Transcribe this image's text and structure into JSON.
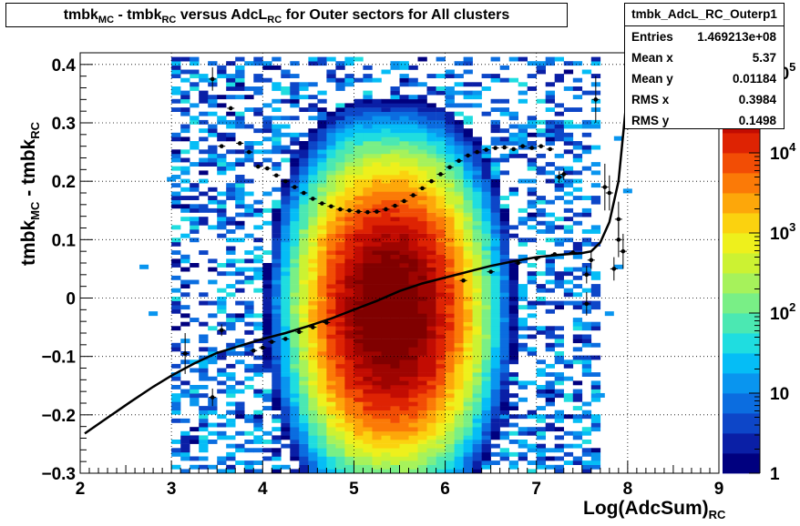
{
  "chart_data": {
    "type": "heatmap",
    "title_parts": [
      "tmbk",
      "MC",
      " - tmbk",
      "RC",
      " versus AdcL",
      "RC",
      " for Outer sectors for All clusters"
    ],
    "xlabel_main": "Log(AdcSum)",
    "xlabel_sub": "RC",
    "ylabel_parts": [
      "tmbk",
      "MC",
      " - tmbk",
      "RC"
    ],
    "xlim": [
      2,
      9
    ],
    "ylim": [
      -0.3,
      0.42
    ],
    "x_ticks": [
      "2",
      "3",
      "4",
      "5",
      "6",
      "7",
      "8",
      "9"
    ],
    "y_ticks": [
      "−0.3",
      "−0.2",
      "−0.1",
      "0",
      "0.1",
      "0.2",
      "0.3",
      "0.4"
    ],
    "y_tick_values": [
      -0.3,
      -0.2,
      -0.1,
      0,
      0.1,
      0.2,
      0.3,
      0.4
    ],
    "grid": true,
    "color_scale": {
      "type": "log",
      "range": [
        1,
        100000
      ],
      "tick_labels": [
        {
          "base": "1",
          "exp": ""
        },
        {
          "base": "10",
          "exp": ""
        },
        {
          "base": "10",
          "exp": "2"
        },
        {
          "base": "10",
          "exp": "3"
        },
        {
          "base": "10",
          "exp": "4"
        },
        {
          "base": "10",
          "exp": "5"
        }
      ],
      "palette": [
        "#00007f",
        "#0a1fa6",
        "#0d46c8",
        "#0b6de0",
        "#0995ef",
        "#05bdf6",
        "#1fdde0",
        "#4be8b2",
        "#79ef86",
        "#a6f25b",
        "#ccf232",
        "#eef01c",
        "#fbd20f",
        "#fda70a",
        "#fb7a07",
        "#f24d05",
        "#de2303",
        "#c20c02",
        "#9e0401",
        "#800000"
      ]
    },
    "stats": {
      "name": "tmbk_AdcL_RC_Outerp1",
      "rows": [
        {
          "label": "Entries",
          "value": "1.469213e+08"
        },
        {
          "label": "Mean x",
          "value": "5.37"
        },
        {
          "label": "Mean y",
          "value": "0.01184"
        },
        {
          "label": "RMS x",
          "value": "0.3984"
        },
        {
          "label": "RMS y",
          "value": "0.1498"
        }
      ]
    },
    "profile_points": [
      {
        "x": 3.15,
        "y": -0.095,
        "ey": 0.035
      },
      {
        "x": 3.45,
        "y": 0.375,
        "ey": 0.02
      },
      {
        "x": 3.45,
        "y": -0.17,
        "ey": 0.015
      },
      {
        "x": 3.55,
        "y": 0.26
      },
      {
        "x": 3.55,
        "y": -0.055,
        "ey": 0.01
      },
      {
        "x": 3.65,
        "y": 0.325
      },
      {
        "x": 3.75,
        "y": 0.265
      },
      {
        "x": 3.85,
        "y": 0.25
      },
      {
        "x": 3.95,
        "y": 0.225
      },
      {
        "x": 4.05,
        "y": 0.222
      },
      {
        "x": 4.15,
        "y": 0.21
      },
      {
        "x": 4.25,
        "y": 0.2
      },
      {
        "x": 4.35,
        "y": 0.19
      },
      {
        "x": 4.45,
        "y": 0.18
      },
      {
        "x": 4.55,
        "y": 0.17
      },
      {
        "x": 4.65,
        "y": 0.162
      },
      {
        "x": 4.75,
        "y": 0.157
      },
      {
        "x": 4.85,
        "y": 0.152
      },
      {
        "x": 4.95,
        "y": 0.15
      },
      {
        "x": 5.05,
        "y": 0.148
      },
      {
        "x": 5.15,
        "y": 0.147
      },
      {
        "x": 5.25,
        "y": 0.148
      },
      {
        "x": 5.35,
        "y": 0.152
      },
      {
        "x": 5.45,
        "y": 0.158
      },
      {
        "x": 5.55,
        "y": 0.166
      },
      {
        "x": 5.65,
        "y": 0.176
      },
      {
        "x": 5.75,
        "y": 0.188
      },
      {
        "x": 5.85,
        "y": 0.2
      },
      {
        "x": 5.95,
        "y": 0.212
      },
      {
        "x": 6.05,
        "y": 0.224
      },
      {
        "x": 6.15,
        "y": 0.235
      },
      {
        "x": 6.25,
        "y": 0.244
      },
      {
        "x": 6.35,
        "y": 0.25
      },
      {
        "x": 6.45,
        "y": 0.254
      },
      {
        "x": 6.55,
        "y": 0.257
      },
      {
        "x": 6.65,
        "y": 0.258
      },
      {
        "x": 6.75,
        "y": 0.255
      },
      {
        "x": 6.85,
        "y": 0.26
      },
      {
        "x": 6.95,
        "y": 0.257
      },
      {
        "x": 7.05,
        "y": 0.26
      },
      {
        "x": 7.15,
        "y": 0.255
      },
      {
        "x": 7.25,
        "y": 0.207,
        "ey": 0.01
      },
      {
        "x": 7.3,
        "y": 0.212,
        "ey": 0.01
      },
      {
        "x": 7.65,
        "y": 0.34,
        "ey": 0.04
      },
      {
        "x": 7.75,
        "y": 0.19,
        "ey": 0.04
      },
      {
        "x": 7.8,
        "y": 0.18,
        "ey": 0.03
      },
      {
        "x": 3.9,
        "y": -0.09
      },
      {
        "x": 4.0,
        "y": -0.085
      },
      {
        "x": 4.1,
        "y": -0.075
      },
      {
        "x": 4.25,
        "y": -0.07
      },
      {
        "x": 4.4,
        "y": -0.058
      },
      {
        "x": 4.55,
        "y": -0.05
      },
      {
        "x": 4.7,
        "y": -0.042
      },
      {
        "x": 6.2,
        "y": 0.03
      },
      {
        "x": 6.5,
        "y": 0.045
      },
      {
        "x": 6.8,
        "y": 0.06
      },
      {
        "x": 7.0,
        "y": 0.068
      },
      {
        "x": 7.2,
        "y": 0.075
      },
      {
        "x": 7.4,
        "y": 0.078
      },
      {
        "x": 7.6,
        "y": 0.065,
        "ey": 0.015
      },
      {
        "x": 7.55,
        "y": 0.04,
        "ey": 0.015
      },
      {
        "x": 7.55,
        "y": -0.01,
        "ey": 0.02
      },
      {
        "x": 7.85,
        "y": 0.05,
        "ey": 0.02
      },
      {
        "x": 7.9,
        "y": 0.1,
        "ey": 0.03
      },
      {
        "x": 7.95,
        "y": 0.08,
        "ey": 0.03
      },
      {
        "x": 7.9,
        "y": 0.135,
        "ey": 0.03
      }
    ],
    "fit_curve": [
      [
        2.05,
        -0.232
      ],
      [
        2.3,
        -0.205
      ],
      [
        2.55,
        -0.178
      ],
      [
        2.8,
        -0.152
      ],
      [
        3.0,
        -0.133
      ],
      [
        3.25,
        -0.112
      ],
      [
        3.5,
        -0.094
      ],
      [
        3.75,
        -0.082
      ],
      [
        4.0,
        -0.07
      ],
      [
        4.25,
        -0.06
      ],
      [
        4.5,
        -0.048
      ],
      [
        4.75,
        -0.035
      ],
      [
        5.0,
        -0.02
      ],
      [
        5.25,
        -0.005
      ],
      [
        5.5,
        0.012
      ],
      [
        5.75,
        0.025
      ],
      [
        6.0,
        0.035
      ],
      [
        6.25,
        0.045
      ],
      [
        6.5,
        0.055
      ],
      [
        6.75,
        0.063
      ],
      [
        7.0,
        0.07
      ],
      [
        7.25,
        0.074
      ],
      [
        7.5,
        0.077
      ],
      [
        7.6,
        0.08
      ],
      [
        7.7,
        0.095
      ],
      [
        7.8,
        0.13
      ],
      [
        7.9,
        0.2
      ],
      [
        7.95,
        0.28
      ],
      [
        8.0,
        0.36
      ],
      [
        8.02,
        0.42
      ]
    ]
  }
}
